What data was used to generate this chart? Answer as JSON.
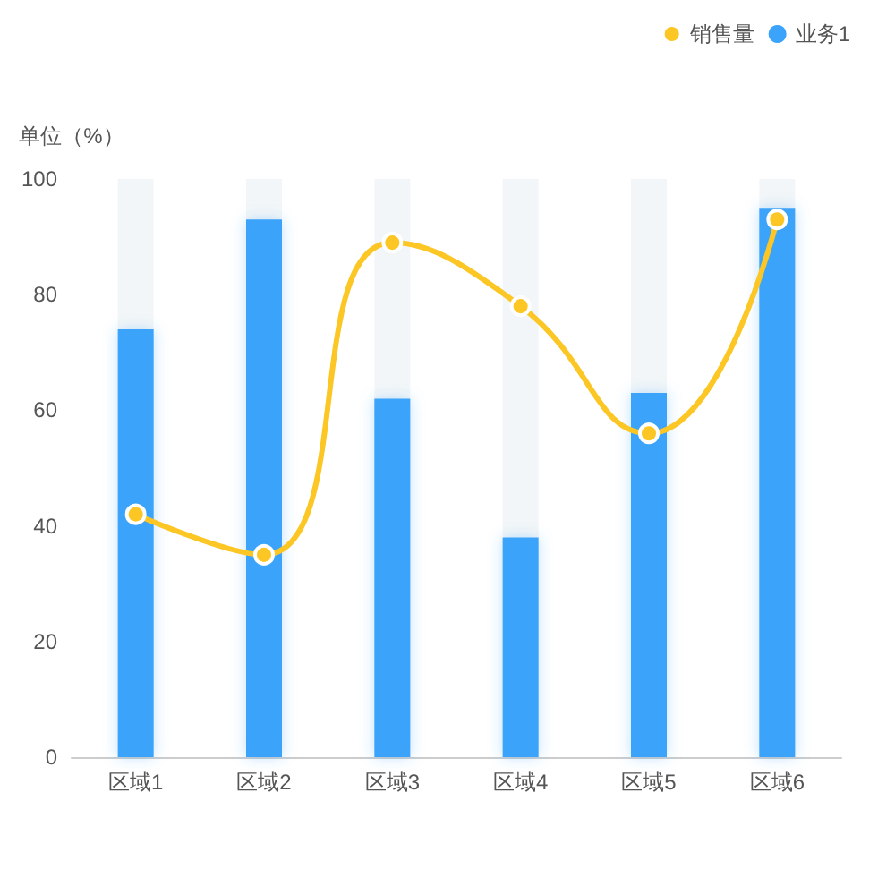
{
  "chart_data": {
    "type": "bar",
    "ylabel": "单位（%）",
    "categories": [
      "区域1",
      "区域2",
      "区域3",
      "区域4",
      "区域5",
      "区域6"
    ],
    "series": [
      {
        "name": "销售量",
        "type": "line",
        "color": "#fcc624",
        "values": [
          42,
          35,
          89,
          78,
          56,
          93
        ]
      },
      {
        "name": "业务1",
        "color": "#3ba3fa",
        "values": [
          74,
          93,
          62,
          38,
          63,
          95
        ]
      }
    ],
    "ylim": [
      0,
      100
    ],
    "yticks": [
      0,
      20,
      40,
      60,
      80,
      100
    ],
    "grid": false,
    "legend": "top right",
    "marker": "circle"
  }
}
